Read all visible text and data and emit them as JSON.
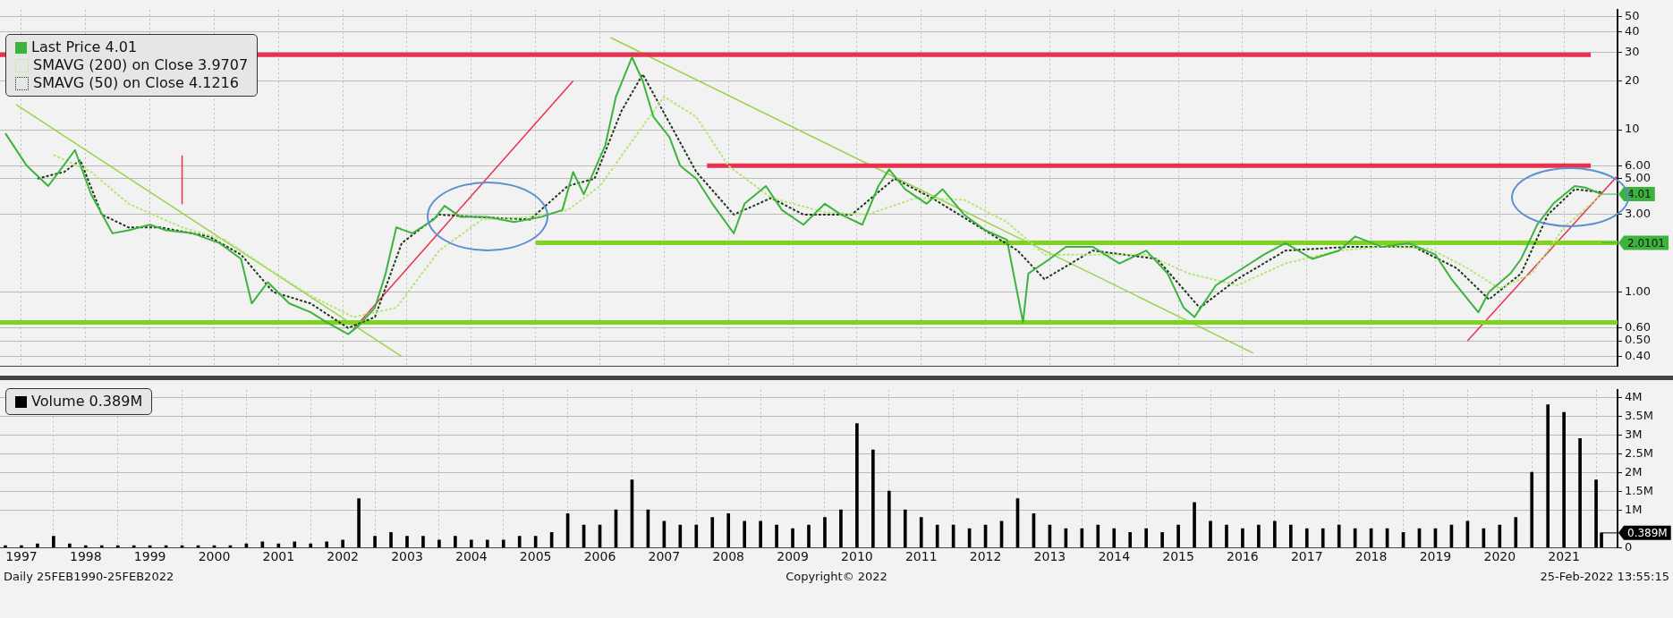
{
  "chart_data": [
    {
      "type": "line",
      "legend": "top left",
      "grid": true,
      "log": "y",
      "tick_labels": "y",
      "xlim": [
        "1997-03",
        "2022-05"
      ],
      "ylim": [
        0.35,
        55
      ],
      "xticks": [
        {
          "value": "1997-07",
          "label": null
        },
        {
          "value": "1998-07",
          "label": null
        },
        {
          "value": "1999-07",
          "label": null
        },
        {
          "value": "2000-07",
          "label": null
        },
        {
          "value": "2001-07",
          "label": null
        },
        {
          "value": "2002-07",
          "label": null
        },
        {
          "value": "2003-07",
          "label": null
        },
        {
          "value": "2004-07",
          "label": null
        },
        {
          "value": "2005-07",
          "label": null
        },
        {
          "value": "2006-07",
          "label": null
        },
        {
          "value": "2007-07",
          "label": null
        },
        {
          "value": "2008-07",
          "label": null
        },
        {
          "value": "2009-07",
          "label": null
        },
        {
          "value": "2010-07",
          "label": null
        },
        {
          "value": "2011-07",
          "label": null
        },
        {
          "value": "2012-07",
          "label": null
        },
        {
          "value": "2013-07",
          "label": null
        },
        {
          "value": "2014-07",
          "label": null
        },
        {
          "value": "2015-07",
          "label": null
        },
        {
          "value": "2016-07",
          "label": null
        },
        {
          "value": "2017-07",
          "label": null
        },
        {
          "value": "2018-07",
          "label": null
        },
        {
          "value": "2019-07",
          "label": null
        },
        {
          "value": "2020-07",
          "label": null
        },
        {
          "value": "2021-07",
          "label": null
        }
      ],
      "yticks": [
        {
          "value": 0.4,
          "label": "0.40"
        },
        {
          "value": 0.5,
          "label": "0.50"
        },
        {
          "value": 0.6,
          "label": "0.60"
        },
        {
          "value": 1,
          "label": "1.00"
        },
        {
          "value": 3,
          "label": "3.00"
        },
        {
          "value": 5,
          "label": "5.00"
        },
        {
          "value": 6,
          "label": "6.00"
        },
        10,
        20,
        30,
        40,
        50
      ],
      "series": [
        {
          "type": "line",
          "name": "Last Price 4.01",
          "color": "#3cb43c",
          "x": [
            "1997-04",
            "1997-08",
            "1997-12",
            "1998-02",
            "1998-05",
            "1998-08",
            "1998-12",
            "1999-03",
            "1999-07",
            "1999-10",
            "2000-03",
            "2000-08",
            "2000-12",
            "2001-02",
            "2001-05",
            "2001-09",
            "2002-01",
            "2002-04",
            "2002-08",
            "2002-10",
            "2003-01",
            "2003-03",
            "2003-05",
            "2003-08",
            "2003-12",
            "2004-02",
            "2004-05",
            "2004-10",
            "2005-03",
            "2005-08",
            "2005-12",
            "2006-02",
            "2006-04",
            "2006-08",
            "2006-10",
            "2007-01",
            "2007-03",
            "2007-05",
            "2007-08",
            "2007-10",
            "2008-01",
            "2008-04",
            "2008-08",
            "2008-10",
            "2009-02",
            "2009-05",
            "2009-09",
            "2010-01",
            "2010-04",
            "2010-08",
            "2010-11",
            "2011-01",
            "2011-04",
            "2011-08",
            "2011-11",
            "2012-03",
            "2012-07",
            "2012-11",
            "2013-02",
            "2013-03",
            "2013-07",
            "2013-10",
            "2014-03",
            "2014-08",
            "2015-01",
            "2015-05",
            "2015-08",
            "2015-10",
            "2016-02",
            "2016-07",
            "2016-11",
            "2017-03",
            "2017-08",
            "2018-01",
            "2018-04",
            "2018-09",
            "2019-02",
            "2019-07",
            "2019-10",
            "2020-03",
            "2020-05",
            "2020-09",
            "2020-11",
            "2021-02",
            "2021-05",
            "2021-09",
            "2021-11",
            "2022-02"
          ],
          "values": [
            9.5,
            6.0,
            4.5,
            5.5,
            7.5,
            4.0,
            2.3,
            2.4,
            2.6,
            2.4,
            2.3,
            2.0,
            1.6,
            0.85,
            1.15,
            0.85,
            0.75,
            0.65,
            0.55,
            0.62,
            0.8,
            1.3,
            2.5,
            2.3,
            2.8,
            3.4,
            2.9,
            2.9,
            2.7,
            2.9,
            3.2,
            5.5,
            4.0,
            8,
            16,
            28,
            20,
            12,
            9,
            6,
            5,
            3.5,
            2.3,
            3.5,
            4.5,
            3.2,
            2.6,
            3.5,
            3.0,
            2.6,
            4.5,
            5.7,
            4.3,
            3.5,
            4.3,
            3.0,
            2.4,
            2.1,
            0.65,
            1.3,
            1.6,
            1.9,
            1.9,
            1.5,
            1.8,
            1.3,
            0.8,
            0.7,
            1.1,
            1.4,
            1.7,
            2.0,
            1.6,
            1.8,
            2.2,
            1.9,
            2.0,
            1.7,
            1.2,
            0.75,
            1.0,
            1.3,
            1.6,
            2.6,
            3.5,
            4.5,
            4.4,
            4.01
          ]
        },
        {
          "type": "line",
          "name": "SMAVG (200) on Close 3.9707",
          "color": "#b5e67a",
          "line_style": "dotted",
          "x": [
            "1998-01",
            "1998-08",
            "1999-03",
            "2000-01",
            "2000-09",
            "2001-05",
            "2002-01",
            "2002-09",
            "2003-05",
            "2004-01",
            "2004-09",
            "2005-06",
            "2006-01",
            "2006-07",
            "2007-01",
            "2007-07",
            "2008-01",
            "2008-07",
            "2009-03",
            "2010-01",
            "2010-09",
            "2011-06",
            "2012-03",
            "2012-11",
            "2013-06",
            "2014-03",
            "2015-01",
            "2015-09",
            "2016-06",
            "2017-03",
            "2018-01",
            "2018-09",
            "2019-06",
            "2020-01",
            "2020-07",
            "2021-01",
            "2021-07",
            "2022-02"
          ],
          "values": [
            7.0,
            5.5,
            3.5,
            2.5,
            2.1,
            1.4,
            0.95,
            0.7,
            0.8,
            1.8,
            2.8,
            2.9,
            3.2,
            4.5,
            8.5,
            16,
            12,
            6,
            3.8,
            3.1,
            3.0,
            3.8,
            3.7,
            2.7,
            1.7,
            1.7,
            1.7,
            1.3,
            1.1,
            1.5,
            1.8,
            1.9,
            1.85,
            1.4,
            1.05,
            1.3,
            2.5,
            3.97
          ]
        },
        {
          "type": "line",
          "name": "SMAVG (50) on Close 4.1216",
          "color": "#1e3a1e",
          "line_style": "dotted",
          "x": [
            "1997-10",
            "1998-03",
            "1998-06",
            "1998-10",
            "1999-03",
            "1999-09",
            "2000-06",
            "2000-12",
            "2001-06",
            "2002-01",
            "2002-08",
            "2003-01",
            "2003-06",
            "2004-01",
            "2004-08",
            "2005-06",
            "2006-01",
            "2006-06",
            "2006-11",
            "2007-03",
            "2007-08",
            "2008-01",
            "2008-08",
            "2009-03",
            "2009-09",
            "2010-06",
            "2011-02",
            "2011-09",
            "2012-06",
            "2013-01",
            "2013-06",
            "2014-03",
            "2015-03",
            "2015-11",
            "2016-06",
            "2017-03",
            "2018-03",
            "2019-03",
            "2019-11",
            "2020-05",
            "2020-11",
            "2021-04",
            "2021-09",
            "2022-02"
          ],
          "values": [
            5.0,
            5.5,
            6.5,
            3.0,
            2.5,
            2.5,
            2.2,
            1.7,
            1.0,
            0.85,
            0.6,
            0.7,
            2.0,
            3.0,
            2.9,
            2.8,
            4.5,
            5.0,
            13,
            22,
            11,
            5.5,
            3.0,
            3.8,
            3.0,
            3.0,
            5.0,
            3.8,
            2.5,
            1.8,
            1.2,
            1.8,
            1.6,
            0.8,
            1.2,
            1.8,
            1.9,
            1.9,
            1.4,
            0.9,
            1.3,
            3.0,
            4.3,
            4.12
          ]
        },
        {
          "type": "line",
          "color": "#e8304f",
          "x": [
            "1997-03",
            "2021-12"
          ],
          "values": [
            29,
            29
          ]
        },
        {
          "type": "line",
          "color": "#e8304f",
          "x": [
            "2008-03",
            "2021-12"
          ],
          "values": [
            6,
            6
          ]
        },
        {
          "type": "line",
          "color": "#7ed321",
          "x": [
            "2005-07",
            "2022-05"
          ],
          "values": [
            2.0101,
            2.0101
          ]
        },
        {
          "type": "line",
          "color": "#7ed321",
          "x": [
            "1997-03",
            "2022-05"
          ],
          "values": [
            0.65,
            0.65
          ]
        },
        {
          "type": "line",
          "color": "#e8304f",
          "x": [
            "2000-01",
            "2000-01"
          ],
          "values": [
            6.9,
            3.5
          ]
        },
        {
          "type": "line",
          "color": "#9ad34a",
          "x": [
            "1997-06",
            "2003-06"
          ],
          "values": [
            14.3,
            0.4
          ]
        },
        {
          "type": "line",
          "color": "#e8304f",
          "x": [
            "2002-09",
            "2006-02"
          ],
          "values": [
            0.59,
            20
          ]
        },
        {
          "type": "line",
          "color": "#9ad34a",
          "x": [
            "2006-09",
            "2016-09"
          ],
          "values": [
            37,
            0.42
          ]
        },
        {
          "type": "line",
          "color": "#e8304f",
          "x": [
            "2020-01",
            "2022-05"
          ],
          "values": [
            0.5,
            5.2
          ]
        }
      ],
      "annotations": [
        {
          "text": "4.01",
          "x": "2022-02",
          "y": 4.01
        },
        {
          "text": "2.0101",
          "x": "2022-02",
          "y": 2.0101
        }
      ]
    },
    {
      "type": "bar",
      "legend": "top left",
      "grid": true,
      "xlim": [
        "1997-03",
        "2022-05"
      ],
      "ylim": [
        0,
        4.2
      ],
      "xticks": [
        {
          "value": "1997-07",
          "label": "1997"
        },
        {
          "value": "1998-07",
          "label": "1998"
        },
        {
          "value": "1999-07",
          "label": "1999"
        },
        {
          "value": "2000-07",
          "label": "2000"
        },
        {
          "value": "2001-07",
          "label": "2001"
        },
        {
          "value": "2002-07",
          "label": "2002"
        },
        {
          "value": "2003-07",
          "label": "2003"
        },
        {
          "value": "2004-07",
          "label": "2004"
        },
        {
          "value": "2005-07",
          "label": "2005"
        },
        {
          "value": "2006-07",
          "label": "2006"
        },
        {
          "value": "2007-07",
          "label": "2007"
        },
        {
          "value": "2008-07",
          "label": "2008"
        },
        {
          "value": "2009-07",
          "label": "2009"
        },
        {
          "value": "2010-07",
          "label": "2010"
        },
        {
          "value": "2011-07",
          "label": "2011"
        },
        {
          "value": "2012-07",
          "label": "2012"
        },
        {
          "value": "2013-07",
          "label": "2013"
        },
        {
          "value": "2014-07",
          "label": "2014"
        },
        {
          "value": "2015-07",
          "label": "2015"
        },
        {
          "value": "2016-07",
          "label": "2016"
        },
        {
          "value": "2017-07",
          "label": "2017"
        },
        {
          "value": "2018-07",
          "label": "2018"
        },
        {
          "value": "2019-07",
          "label": "2019"
        },
        {
          "value": "2020-07",
          "label": "2020"
        },
        {
          "value": "2021-07",
          "label": "2021"
        }
      ],
      "yticks": [
        {
          "value": 0,
          "label": "0"
        },
        {
          "value": 1,
          "label": "1M"
        },
        {
          "value": 1.5,
          "label": "1.5M"
        },
        {
          "value": 2,
          "label": "2M"
        },
        {
          "value": 2.5,
          "label": "2.5M"
        },
        {
          "value": 3,
          "label": "3M"
        },
        {
          "value": 3.5,
          "label": "3.5M"
        },
        {
          "value": 4,
          "label": "4M"
        }
      ],
      "series": [
        {
          "type": "bar",
          "name": "Volume 0.389M",
          "color": "#000000",
          "x": [
            "1997-04",
            "1997-07",
            "1997-10",
            "1998-01",
            "1998-04",
            "1998-07",
            "1998-10",
            "1999-01",
            "1999-04",
            "1999-07",
            "1999-10",
            "2000-01",
            "2000-04",
            "2000-07",
            "2000-10",
            "2001-01",
            "2001-04",
            "2001-07",
            "2001-10",
            "2002-01",
            "2002-04",
            "2002-07",
            "2002-10",
            "2003-01",
            "2003-04",
            "2003-07",
            "2003-10",
            "2004-01",
            "2004-04",
            "2004-07",
            "2004-10",
            "2005-01",
            "2005-04",
            "2005-07",
            "2005-10",
            "2006-01",
            "2006-04",
            "2006-07",
            "2006-10",
            "2007-01",
            "2007-04",
            "2007-07",
            "2007-10",
            "2008-01",
            "2008-04",
            "2008-07",
            "2008-10",
            "2009-01",
            "2009-04",
            "2009-07",
            "2009-10",
            "2010-01",
            "2010-04",
            "2010-07",
            "2010-10",
            "2011-01",
            "2011-04",
            "2011-07",
            "2011-10",
            "2012-01",
            "2012-04",
            "2012-07",
            "2012-10",
            "2013-01",
            "2013-04",
            "2013-07",
            "2013-10",
            "2014-01",
            "2014-04",
            "2014-07",
            "2014-10",
            "2015-01",
            "2015-04",
            "2015-07",
            "2015-10",
            "2016-01",
            "2016-04",
            "2016-07",
            "2016-10",
            "2017-01",
            "2017-04",
            "2017-07",
            "2017-10",
            "2018-01",
            "2018-04",
            "2018-07",
            "2018-10",
            "2019-01",
            "2019-04",
            "2019-07",
            "2019-10",
            "2020-01",
            "2020-04",
            "2020-07",
            "2020-10",
            "2021-01",
            "2021-04",
            "2021-07",
            "2021-10",
            "2022-01",
            "2022-02"
          ],
          "values": [
            0.05,
            0.05,
            0.1,
            0.3,
            0.1,
            0.05,
            0.05,
            0.05,
            0.05,
            0.05,
            0.05,
            0.05,
            0.05,
            0.05,
            0.05,
            0.1,
            0.15,
            0.1,
            0.15,
            0.1,
            0.15,
            0.2,
            1.3,
            0.3,
            0.4,
            0.3,
            0.3,
            0.2,
            0.3,
            0.2,
            0.2,
            0.2,
            0.3,
            0.3,
            0.4,
            0.9,
            0.6,
            0.6,
            1.0,
            1.8,
            1.0,
            0.7,
            0.6,
            0.6,
            0.8,
            0.9,
            0.7,
            0.7,
            0.6,
            0.5,
            0.6,
            0.8,
            1.0,
            3.3,
            2.6,
            1.5,
            1.0,
            0.8,
            0.6,
            0.6,
            0.5,
            0.6,
            0.7,
            1.3,
            0.9,
            0.6,
            0.5,
            0.5,
            0.6,
            0.5,
            0.4,
            0.5,
            0.4,
            0.6,
            1.2,
            0.7,
            0.6,
            0.5,
            0.6,
            0.7,
            0.6,
            0.5,
            0.5,
            0.6,
            0.5,
            0.5,
            0.5,
            0.4,
            0.5,
            0.5,
            0.6,
            0.7,
            0.5,
            0.6,
            0.8,
            2.0,
            3.8,
            3.6,
            2.9,
            1.8,
            0.389
          ]
        }
      ],
      "annotations": [
        {
          "text": "0.389M",
          "x": "2022-02",
          "y": 0.389
        },
        "Daily 25FEB1990-25FEB2022",
        "Copyright© 2022",
        "25-Feb-2022 13:55:15"
      ]
    }
  ]
}
